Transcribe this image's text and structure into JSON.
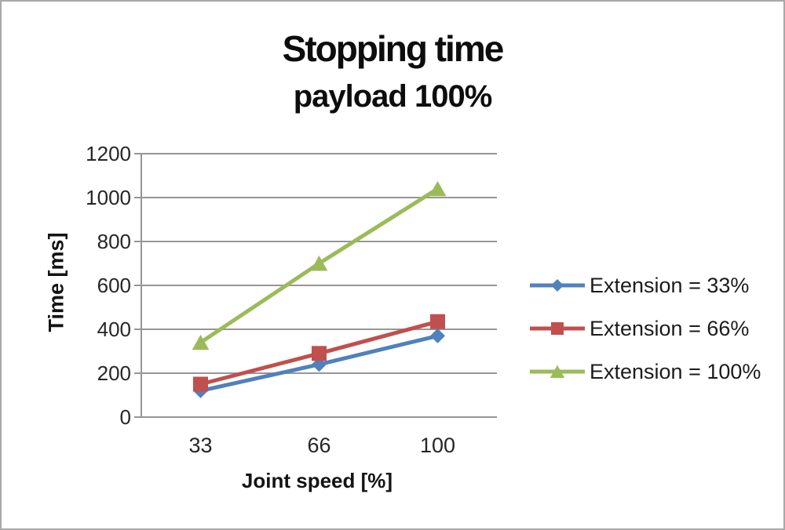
{
  "window": {
    "background": "#ffffff",
    "border_color": "#a9a9a9"
  },
  "chart_data": {
    "type": "line",
    "title": "Stopping time",
    "subtitle": "payload 100%",
    "xlabel": "Joint speed [%]",
    "ylabel": "Time [ms]",
    "categories": [
      "33",
      "66",
      "100"
    ],
    "series": [
      {
        "name": "Extension = 33%",
        "marker": "diamond",
        "color": "#4F81BD",
        "values": [
          120,
          240,
          370
        ]
      },
      {
        "name": "Extension = 66%",
        "marker": "square",
        "color": "#C0504D",
        "values": [
          150,
          290,
          435
        ]
      },
      {
        "name": "Extension = 100%",
        "marker": "triangle",
        "color": "#9BBB59",
        "values": [
          340,
          700,
          1040
        ]
      }
    ],
    "ylim": [
      0,
      1200
    ],
    "yticks": [
      0,
      200,
      400,
      600,
      800,
      1000,
      1200
    ],
    "grid": "horizontal",
    "legend_position": "right",
    "gridline_color": "#969696",
    "axis_color": "#969696",
    "text_color": "#262626"
  }
}
